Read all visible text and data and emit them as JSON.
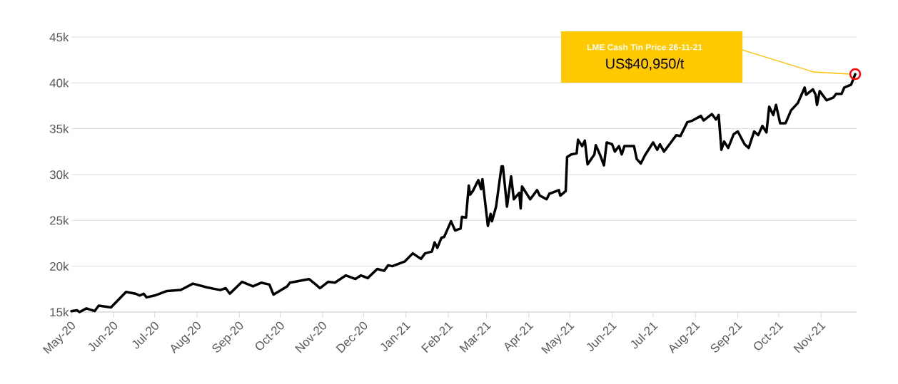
{
  "chart_data": {
    "type": "line",
    "color": "#000000",
    "line_style": "solid",
    "grid": "y",
    "x": [
      "2020-05-01",
      "2020-05-05",
      "2020-05-07",
      "2020-05-12",
      "2020-05-18",
      "2020-05-21",
      "2020-05-30",
      "2020-06-10",
      "2020-06-17",
      "2020-06-20",
      "2020-06-23",
      "2020-06-25",
      "2020-07-01",
      "2020-07-10",
      "2020-07-20",
      "2020-07-29",
      "2020-08-08",
      "2020-08-18",
      "2020-08-22",
      "2020-08-25",
      "2020-09-03",
      "2020-09-11",
      "2020-09-17",
      "2020-09-23",
      "2020-09-26",
      "2020-10-06",
      "2020-10-08",
      "2020-10-22",
      "2020-10-27",
      "2020-10-30",
      "2020-11-05",
      "2020-11-10",
      "2020-11-18",
      "2020-11-25",
      "2020-11-29",
      "2020-12-04",
      "2020-12-11",
      "2020-12-16",
      "2020-12-19",
      "2020-12-22",
      "2020-12-31",
      "2021-01-06",
      "2021-01-12",
      "2021-01-15",
      "2021-01-20",
      "2021-01-22",
      "2021-01-24",
      "2021-01-27",
      "2021-01-29",
      "2021-02-03",
      "2021-02-06",
      "2021-02-10",
      "2021-02-11",
      "2021-02-14",
      "2021-02-16",
      "2021-02-17",
      "2021-02-19",
      "2021-02-23",
      "2021-02-25",
      "2021-02-26",
      "2021-03-02",
      "2021-03-04",
      "2021-03-05",
      "2021-03-08",
      "2021-03-12",
      "2021-03-13",
      "2021-03-16",
      "2021-03-19",
      "2021-03-21",
      "2021-03-25",
      "2021-03-26",
      "2021-03-27",
      "2021-04-02",
      "2021-04-07",
      "2021-04-09",
      "2021-04-14",
      "2021-04-16",
      "2021-04-23",
      "2021-04-24",
      "2021-04-28",
      "2021-04-29",
      "2021-05-02",
      "2021-05-06",
      "2021-05-07",
      "2021-05-10",
      "2021-05-12",
      "2021-05-14",
      "2021-05-19",
      "2021-05-20",
      "2021-05-23",
      "2021-05-26",
      "2021-05-28",
      "2021-06-01",
      "2021-06-03",
      "2021-06-06",
      "2021-06-08",
      "2021-06-10",
      "2021-06-17",
      "2021-06-19",
      "2021-06-22",
      "2021-06-25",
      "2021-07-01",
      "2021-07-04",
      "2021-07-06",
      "2021-07-09",
      "2021-07-14",
      "2021-07-18",
      "2021-07-21",
      "2021-07-26",
      "2021-07-30",
      "2021-08-05",
      "2021-08-07",
      "2021-08-13",
      "2021-08-16",
      "2021-08-18",
      "2021-08-20",
      "2021-08-22",
      "2021-08-25",
      "2021-08-29",
      "2021-09-01",
      "2021-09-06",
      "2021-09-09",
      "2021-09-13",
      "2021-09-16",
      "2021-09-19",
      "2021-09-22",
      "2021-09-24",
      "2021-09-27",
      "2021-09-29",
      "2021-10-02",
      "2021-10-06",
      "2021-10-10",
      "2021-10-15",
      "2021-10-20",
      "2021-10-21",
      "2021-10-26",
      "2021-10-28",
      "2021-10-29",
      "2021-10-31",
      "2021-11-05",
      "2021-11-10",
      "2021-11-12",
      "2021-11-16",
      "2021-11-18",
      "2021-11-23",
      "2021-11-26"
    ],
    "values": [
      15100,
      15200,
      15000,
      15400,
      15100,
      15700,
      15500,
      17200,
      17000,
      16800,
      17000,
      16600,
      16800,
      17300,
      17400,
      18100,
      17700,
      17400,
      17600,
      17000,
      18300,
      17800,
      18200,
      18000,
      16900,
      17800,
      18200,
      18600,
      18000,
      17600,
      18300,
      18200,
      19000,
      18600,
      19000,
      18700,
      19700,
      19500,
      20100,
      20000,
      20500,
      21400,
      20800,
      21400,
      21600,
      22600,
      22000,
      23100,
      23200,
      24900,
      23900,
      24100,
      25400,
      25300,
      28800,
      27800,
      28200,
      29400,
      28400,
      29500,
      24400,
      25700,
      24900,
      26500,
      30900,
      30900,
      26500,
      29800,
      27300,
      28000,
      26300,
      28700,
      27300,
      28300,
      27700,
      27300,
      27900,
      28300,
      27700,
      28200,
      31900,
      32200,
      32300,
      33800,
      33100,
      33700,
      31100,
      32200,
      33200,
      32200,
      31000,
      33500,
      33300,
      32500,
      33100,
      32200,
      33100,
      33100,
      31700,
      31200,
      32100,
      33500,
      32700,
      33300,
      32500,
      33500,
      34300,
      34200,
      35700,
      35900,
      36400,
      35900,
      36600,
      36000,
      36500,
      32700,
      33600,
      32900,
      34400,
      34700,
      33300,
      32900,
      34700,
      34300,
      35300,
      34600,
      37400,
      36500,
      37600,
      35600,
      35600,
      37000,
      37800,
      39500,
      38700,
      39300,
      38700,
      37600,
      39100,
      38100,
      38400,
      38800,
      38800,
      39500,
      39800,
      40950
    ],
    "xlim": [
      "2020-05-01",
      "2021-11-27"
    ],
    "ylim": [
      15000,
      45000
    ],
    "xticks": [
      {
        "value": "2020-05-01",
        "label": "May-20"
      },
      {
        "value": "2020-06-01",
        "label": "Jun-20"
      },
      {
        "value": "2020-07-01",
        "label": "Jul-20"
      },
      {
        "value": "2020-08-01",
        "label": "Aug-20"
      },
      {
        "value": "2020-09-01",
        "label": "Sep-20"
      },
      {
        "value": "2020-10-01",
        "label": "Oct-20"
      },
      {
        "value": "2020-11-01",
        "label": "Nov-20"
      },
      {
        "value": "2020-12-01",
        "label": "Dec-20"
      },
      {
        "value": "2021-01-01",
        "label": "Jan-21"
      },
      {
        "value": "2021-02-01",
        "label": "Feb-21"
      },
      {
        "value": "2021-03-01",
        "label": "Mar-21"
      },
      {
        "value": "2021-04-01",
        "label": "Apr-21"
      },
      {
        "value": "2021-05-01",
        "label": "May-21"
      },
      {
        "value": "2021-06-01",
        "label": "Jun-21"
      },
      {
        "value": "2021-07-01",
        "label": "Jul-21"
      },
      {
        "value": "2021-08-01",
        "label": "Aug-21"
      },
      {
        "value": "2021-09-01",
        "label": "Sep-21"
      },
      {
        "value": "2021-10-01",
        "label": "Oct-21"
      },
      {
        "value": "2021-11-01",
        "label": "Nov-21"
      }
    ],
    "yticks": [
      {
        "value": 15000,
        "label": "15k"
      },
      {
        "value": 20000,
        "label": "20k"
      },
      {
        "value": 25000,
        "label": "25k"
      },
      {
        "value": 30000,
        "label": "30k"
      },
      {
        "value": 35000,
        "label": "35k"
      },
      {
        "value": 40000,
        "label": "40k"
      },
      {
        "value": 45000,
        "label": "45k"
      }
    ],
    "annotations": [
      "LME Cash Tin Price 26-11-21",
      "US$40,950/t"
    ]
  }
}
